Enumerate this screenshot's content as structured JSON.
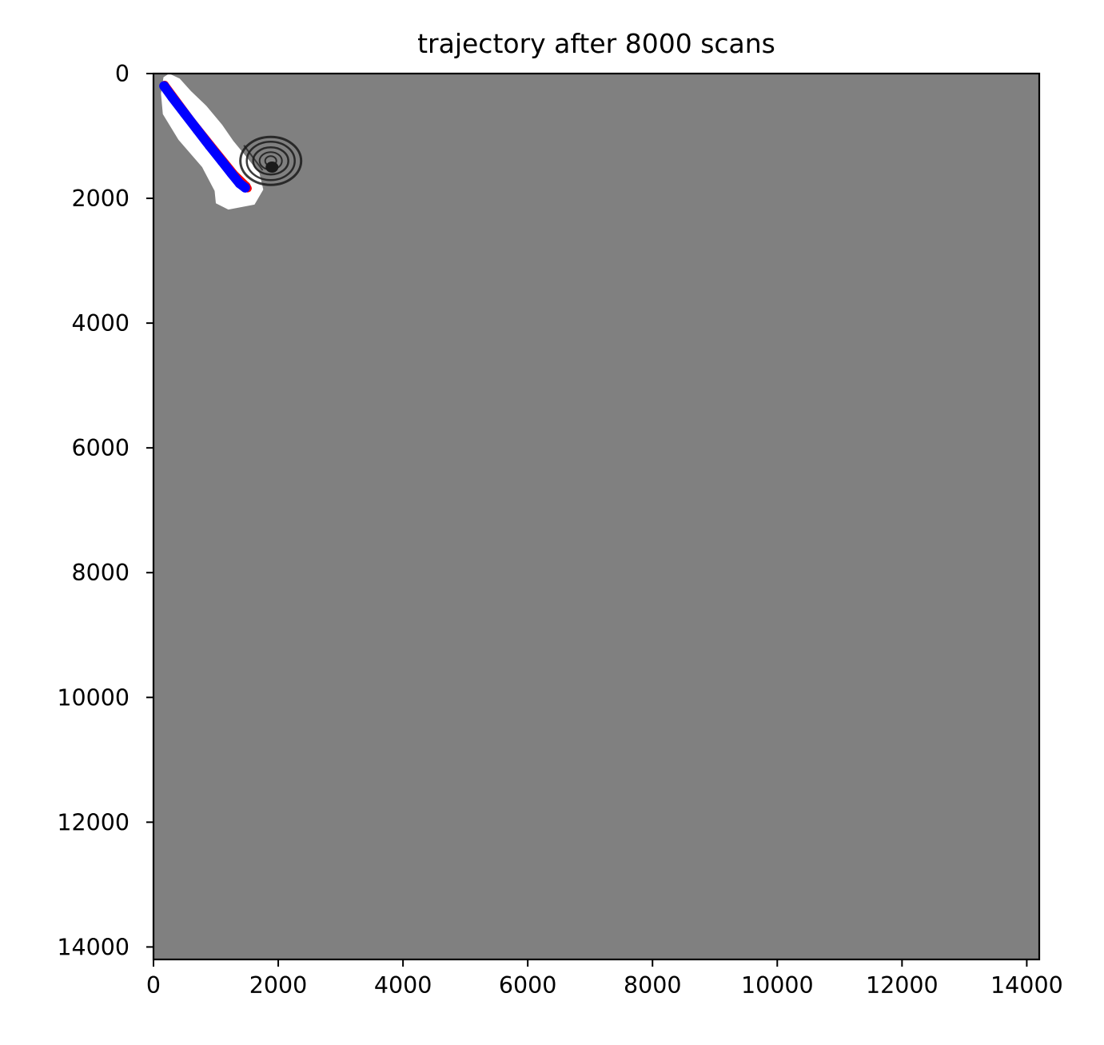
{
  "chart_data": {
    "type": "scatter",
    "title": "trajectory after 8000 scans",
    "xlabel": "",
    "ylabel": "",
    "xlim": [
      0,
      14200
    ],
    "ylim": [
      14200,
      0
    ],
    "y_inverted": true,
    "grid": false,
    "background": "occupancy-map image (gray unknown, white free, black obstacles)",
    "x_ticks": [
      "0",
      "2000",
      "4000",
      "6000",
      "8000",
      "10000",
      "12000",
      "14000"
    ],
    "y_ticks": [
      "0",
      "2000",
      "4000",
      "6000",
      "8000",
      "10000",
      "12000",
      "14000"
    ],
    "colors": {
      "unknown": "#808080",
      "free": "#ffffff",
      "obstacle": "#1a1a1a",
      "trajectory_estimate": "#ff0000",
      "trajectory": "#0000ff"
    },
    "series": [
      {
        "color": "#ff0000",
        "x": [
          180,
          600,
          1000,
          1300,
          1490,
          1510
        ],
        "y": [
          180,
          750,
          1250,
          1620,
          1800,
          1840
        ]
      },
      {
        "color": "#0000ff",
        "x": [
          170,
          300,
          500,
          700,
          900,
          1100,
          1250,
          1380,
          1470
        ],
        "y": [
          200,
          380,
          640,
          900,
          1160,
          1410,
          1600,
          1760,
          1830
        ]
      }
    ]
  }
}
